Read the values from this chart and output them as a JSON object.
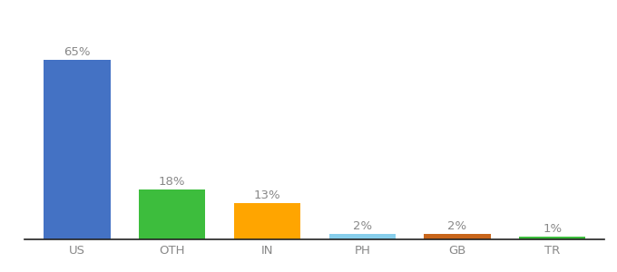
{
  "categories": [
    "US",
    "OTH",
    "IN",
    "PH",
    "GB",
    "TR"
  ],
  "values": [
    65,
    18,
    13,
    2,
    2,
    1
  ],
  "labels": [
    "65%",
    "18%",
    "13%",
    "2%",
    "2%",
    "1%"
  ],
  "bar_colors": [
    "#4472C4",
    "#3DBD3D",
    "#FFA500",
    "#87CEEB",
    "#C8651B",
    "#3DBD3D"
  ],
  "label_fontsize": 9.5,
  "tick_fontsize": 9.5,
  "ylim": [
    0,
    75
  ],
  "background_color": "#ffffff",
  "bar_width": 0.7,
  "label_color": "#888888",
  "tick_color": "#888888",
  "spine_color": "#222222"
}
